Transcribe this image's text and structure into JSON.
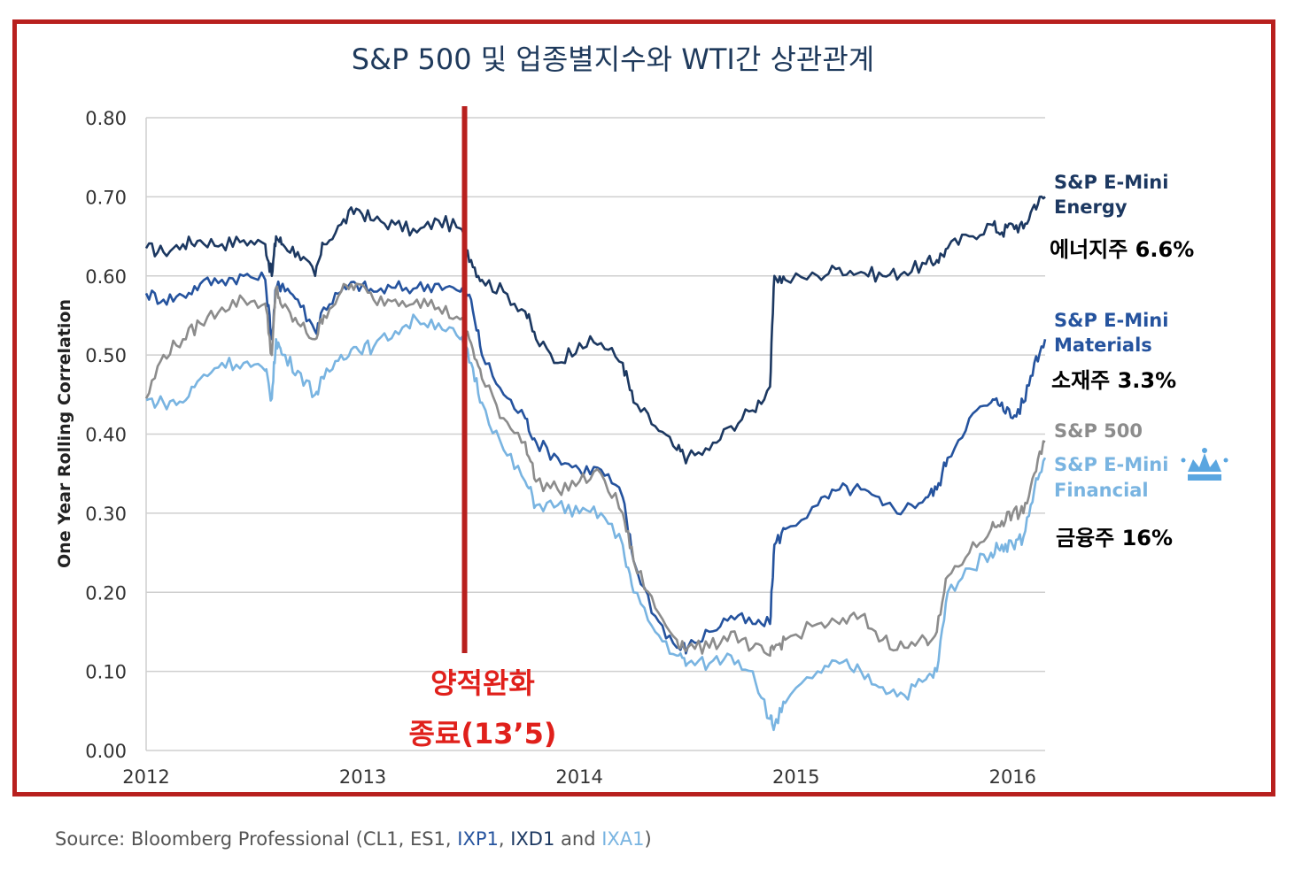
{
  "colors": {
    "frame": "#b8201e",
    "energy": "#1c3861",
    "materials": "#25539e",
    "sp500": "#8c8c8c",
    "financial": "#79b4e1",
    "annotation": "#e0201b",
    "grid": "#cfcfcf",
    "ixp1": "#25539e",
    "ixd1": "#1c3861",
    "ixa1": "#79b4e1"
  },
  "chart_data": {
    "type": "line",
    "title": "S&P 500 및 업종별지수와 WTI간 상관관계",
    "ylabel": "One Year Rolling Correlation",
    "xlabel": "",
    "xlim": [
      2012.0,
      2016.15
    ],
    "ylim": [
      0.0,
      0.8
    ],
    "x_ticks": [
      2012,
      2013,
      2014,
      2015,
      2016
    ],
    "x_tick_labels": [
      "2012",
      "2013",
      "2014",
      "2015",
      "2016"
    ],
    "y_ticks": [
      0.0,
      0.1,
      0.2,
      0.3,
      0.4,
      0.5,
      0.6,
      0.7,
      0.8
    ],
    "y_tick_labels": [
      "0.00",
      "0.10",
      "0.20",
      "0.30",
      "0.40",
      "0.50",
      "0.60",
      "0.70",
      "0.80"
    ],
    "grid": true,
    "x": [
      2012.0,
      2012.08,
      2012.17,
      2012.25,
      2012.35,
      2012.45,
      2012.55,
      2012.58,
      2012.6,
      2012.63,
      2012.7,
      2012.78,
      2012.82,
      2012.9,
      2012.97,
      2013.05,
      2013.15,
      2013.25,
      2013.35,
      2013.45,
      2013.5,
      2013.55,
      2013.65,
      2013.75,
      2013.8,
      2013.9,
      2014.0,
      2014.1,
      2014.2,
      2014.25,
      2014.35,
      2014.45,
      2014.5,
      2014.6,
      2014.7,
      2014.8,
      2014.88,
      2014.9,
      2014.95,
      2015.1,
      2015.2,
      2015.3,
      2015.4,
      2015.5,
      2015.6,
      2015.65,
      2015.7,
      2015.8,
      2015.9,
      2015.95,
      2016.0,
      2016.05,
      2016.1,
      2016.15
    ],
    "series": [
      {
        "name": "S&P E-Mini Energy",
        "legend": [
          "S&P E-Mini",
          "Energy"
        ],
        "color_key": "energy",
        "values": [
          0.635,
          0.63,
          0.64,
          0.645,
          0.64,
          0.645,
          0.64,
          0.6,
          0.65,
          0.64,
          0.63,
          0.6,
          0.64,
          0.665,
          0.685,
          0.67,
          0.665,
          0.655,
          0.67,
          0.66,
          0.62,
          0.595,
          0.58,
          0.555,
          0.52,
          0.49,
          0.515,
          0.515,
          0.49,
          0.44,
          0.41,
          0.38,
          0.37,
          0.38,
          0.41,
          0.43,
          0.46,
          0.6,
          0.595,
          0.6,
          0.61,
          0.605,
          0.6,
          0.605,
          0.615,
          0.62,
          0.635,
          0.65,
          0.665,
          0.655,
          0.665,
          0.66,
          0.69,
          0.7
        ]
      },
      {
        "name": "S&P E-Mini Materials",
        "legend": [
          "S&P E-Mini",
          "Materials"
        ],
        "color_key": "materials",
        "values": [
          0.578,
          0.57,
          0.575,
          0.59,
          0.595,
          0.6,
          0.595,
          0.52,
          0.585,
          0.59,
          0.57,
          0.53,
          0.56,
          0.58,
          0.59,
          0.58,
          0.585,
          0.585,
          0.59,
          0.58,
          0.57,
          0.5,
          0.45,
          0.42,
          0.39,
          0.37,
          0.355,
          0.355,
          0.32,
          0.24,
          0.17,
          0.13,
          0.13,
          0.15,
          0.17,
          0.16,
          0.16,
          0.26,
          0.28,
          0.31,
          0.33,
          0.33,
          0.31,
          0.305,
          0.32,
          0.33,
          0.37,
          0.42,
          0.44,
          0.44,
          0.42,
          0.44,
          0.49,
          0.52
        ]
      },
      {
        "name": "S&P 500",
        "legend": [
          "S&P 500"
        ],
        "color_key": "sp500",
        "values": [
          0.445,
          0.5,
          0.52,
          0.54,
          0.56,
          0.57,
          0.565,
          0.5,
          0.585,
          0.56,
          0.54,
          0.52,
          0.55,
          0.58,
          0.59,
          0.57,
          0.57,
          0.57,
          0.56,
          0.545,
          0.515,
          0.47,
          0.42,
          0.39,
          0.34,
          0.33,
          0.34,
          0.35,
          0.3,
          0.24,
          0.18,
          0.14,
          0.13,
          0.13,
          0.15,
          0.13,
          0.12,
          0.13,
          0.14,
          0.16,
          0.16,
          0.17,
          0.14,
          0.13,
          0.14,
          0.15,
          0.22,
          0.25,
          0.28,
          0.29,
          0.3,
          0.3,
          0.35,
          0.39
        ]
      },
      {
        "name": "S&P E-Mini Financial",
        "legend": [
          "S&P E-Mini",
          "Financial"
        ],
        "color_key": "financial",
        "values": [
          0.443,
          0.44,
          0.44,
          0.47,
          0.49,
          0.49,
          0.48,
          0.445,
          0.52,
          0.5,
          0.48,
          0.45,
          0.47,
          0.5,
          0.51,
          0.51,
          0.53,
          0.545,
          0.54,
          0.52,
          0.49,
          0.44,
          0.38,
          0.34,
          0.31,
          0.31,
          0.3,
          0.3,
          0.26,
          0.2,
          0.15,
          0.12,
          0.11,
          0.11,
          0.12,
          0.1,
          0.04,
          0.03,
          0.06,
          0.1,
          0.11,
          0.1,
          0.08,
          0.07,
          0.09,
          0.1,
          0.2,
          0.23,
          0.25,
          0.26,
          0.26,
          0.27,
          0.33,
          0.37
        ]
      }
    ],
    "annotations": {
      "event_x": 2013.47,
      "event_label_1": "양적완화",
      "event_label_2": "종료(13’5)",
      "sector_energy": "에너지주 6.6%",
      "sector_materials": "소재주 3.3%",
      "sector_financial": "금융주 16%"
    }
  },
  "source": {
    "prefix": "Source: Bloomberg Professional (CL1, ES1, ",
    "ixp1": "IXP1",
    "sep": ", ",
    "ixd1": "IXD1",
    "and": " and ",
    "ixa1": "IXA1",
    "suffix": ")"
  }
}
